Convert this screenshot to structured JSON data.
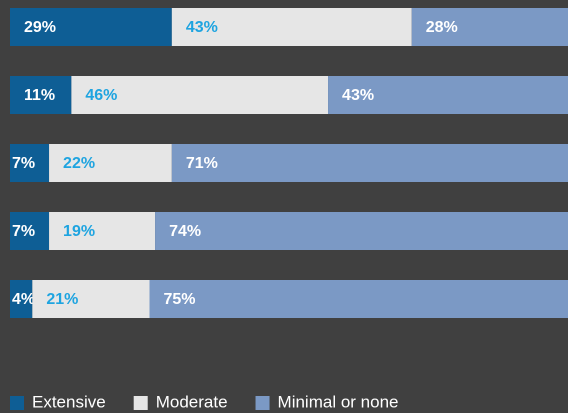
{
  "chart_data": {
    "type": "stacked-bar-horizontal",
    "categories": [
      null,
      null,
      null,
      null,
      null
    ],
    "xlim": [
      0,
      100
    ],
    "legend": "bottom-left",
    "series": [
      {
        "name": "Extensive",
        "color": "#0e5e95",
        "label_color": "#ffffff",
        "values": [
          29,
          11,
          7,
          7,
          4
        ],
        "value_labels": [
          "29%",
          "11%",
          "7%",
          "7%",
          "4%"
        ]
      },
      {
        "name": "Moderate",
        "color": "#e6e6e6",
        "label_color": "#1ea4e0",
        "values": [
          43,
          46,
          22,
          19,
          21
        ],
        "value_labels": [
          "43%",
          "46%",
          "22%",
          "19%",
          "21%"
        ]
      },
      {
        "name": "Minimal or none",
        "color": "#7b99c5",
        "label_color": "#ffffff",
        "values": [
          28,
          43,
          71,
          74,
          75
        ],
        "value_labels": [
          "28%",
          "43%",
          "71%",
          "74%",
          "75%"
        ]
      }
    ]
  }
}
